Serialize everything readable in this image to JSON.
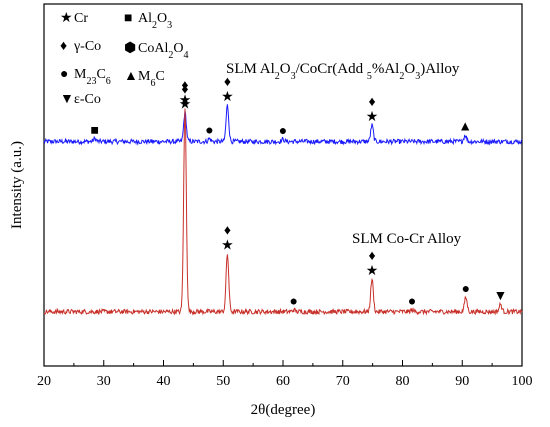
{
  "chart_data": {
    "type": "line",
    "xlabel": "2θ(degree)",
    "ylabel": "Intensity (a.u.)",
    "xlim": [
      20,
      100
    ],
    "xticks": [
      20,
      30,
      40,
      50,
      60,
      70,
      80,
      90,
      100
    ],
    "ylim": [
      0,
      1
    ],
    "legend": [
      {
        "symbol": "★",
        "text": "Cr"
      },
      {
        "symbol": "♦",
        "text": "γ-Co"
      },
      {
        "symbol": "●",
        "text": "M23C6"
      },
      {
        "symbol": "▼",
        "text": "ε-Co"
      },
      {
        "symbol": "■",
        "text": "Al2O3"
      },
      {
        "symbol": "⬢",
        "text": "CoAl2O4"
      },
      {
        "symbol": "▲",
        "text": "M6C"
      }
    ],
    "legend_placement": "top-left",
    "series": [
      {
        "name": "SLM Al2O3/CoCr(Add 5%Al2O3)Alloy",
        "color": "#1a1aff",
        "baseline": 0.62,
        "peaks": [
          {
            "x": 28.5,
            "h": 0.008
          },
          {
            "x": 43.6,
            "h": 0.08
          },
          {
            "x": 47.7,
            "h": 0.008
          },
          {
            "x": 50.7,
            "h": 0.1
          },
          {
            "x": 60.0,
            "h": 0.006
          },
          {
            "x": 74.9,
            "h": 0.045
          },
          {
            "x": 90.5,
            "h": 0.018
          }
        ],
        "markers": [
          {
            "x": 28.5,
            "symbols": [
              "■"
            ]
          },
          {
            "x": 43.6,
            "symbols": [
              "♦",
              "★"
            ]
          },
          {
            "x": 47.7,
            "symbols": [
              "●"
            ]
          },
          {
            "x": 50.7,
            "symbols": [
              "♦",
              "★"
            ]
          },
          {
            "x": 60.0,
            "symbols": [
              "●"
            ]
          },
          {
            "x": 74.9,
            "symbols": [
              "♦",
              "★"
            ]
          },
          {
            "x": 90.5,
            "symbols": [
              "▲"
            ]
          }
        ]
      },
      {
        "name": "SLM Co-Cr Alloy",
        "color": "#c8302a",
        "baseline": 0.15,
        "peaks": [
          {
            "x": 43.6,
            "h": 0.56
          },
          {
            "x": 50.7,
            "h": 0.16
          },
          {
            "x": 61.8,
            "h": 0.005
          },
          {
            "x": 74.9,
            "h": 0.09
          },
          {
            "x": 81.6,
            "h": 0.005
          },
          {
            "x": 90.6,
            "h": 0.04
          },
          {
            "x": 96.4,
            "h": 0.02
          }
        ],
        "markers": [
          {
            "x": 43.6,
            "symbols": [
              "♦",
              "★"
            ]
          },
          {
            "x": 50.7,
            "symbols": [
              "♦",
              "★"
            ]
          },
          {
            "x": 61.8,
            "symbols": [
              "●"
            ]
          },
          {
            "x": 74.9,
            "symbols": [
              "♦",
              "★"
            ]
          },
          {
            "x": 81.6,
            "symbols": [
              "●"
            ]
          },
          {
            "x": 90.6,
            "symbols": [
              "●"
            ]
          },
          {
            "x": 96.4,
            "symbols": [
              "▼"
            ]
          }
        ]
      }
    ]
  }
}
